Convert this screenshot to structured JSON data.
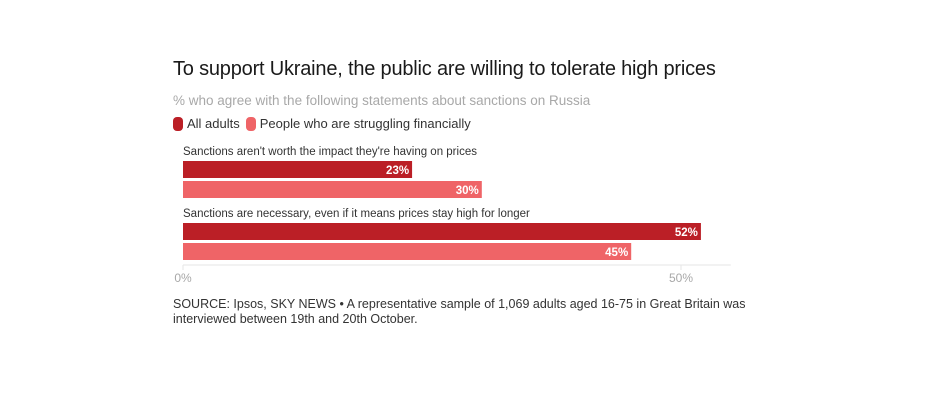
{
  "chart_data": {
    "type": "bar",
    "orientation": "horizontal",
    "title": "To support Ukraine, the public are willing to tolerate high prices",
    "subtitle": "% who agree with the following statements about sanctions on Russia",
    "categories": [
      "Sanctions aren't worth the impact they're having on prices",
      "Sanctions are necessary, even if it means prices stay high for longer"
    ],
    "series": [
      {
        "name": "All adults",
        "color": "#bb1f26",
        "values": [
          23,
          52
        ]
      },
      {
        "name": "People who are struggling financially",
        "color": "#ef6467",
        "values": [
          30,
          45
        ]
      }
    ],
    "value_suffix": "%",
    "xlabel": "",
    "ylabel": "",
    "xlim": [
      0,
      55
    ],
    "xticks": [
      0,
      50
    ],
    "xtick_labels": [
      "0%",
      "50%"
    ],
    "grid": false,
    "legend_position": "top-left",
    "source": "SOURCE: Ipsos, SKY NEWS • A representative sample of 1,069 adults aged 16-75 in Great Britain was interviewed between 19th and 20th October."
  }
}
